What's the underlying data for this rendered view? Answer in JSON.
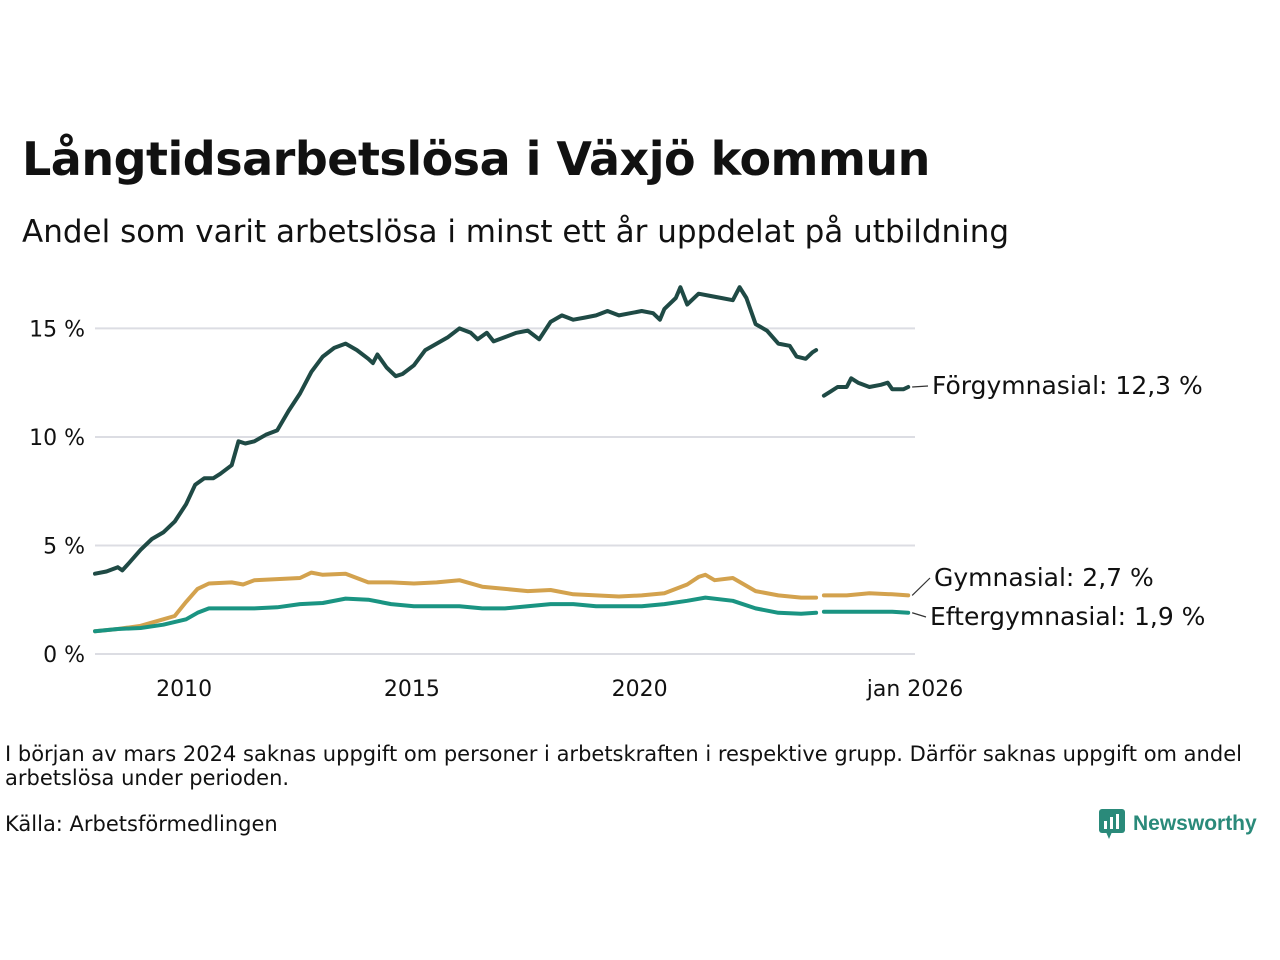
{
  "header": {
    "title": "Långtidsarbetslösa i Växjö kommun",
    "subtitle": "Andel som varit arbetslösa i minst ett år uppdelat på utbildning"
  },
  "footer": {
    "note": "I början av mars 2024 saknas uppgift om personer i arbetskraften i respektive grupp. Därför saknas uppgift om andel arbetslösa under perioden.",
    "source": "Källa: Arbetsförmedlingen",
    "brand": "Newsworthy",
    "brand_icon": "bar-chart-icon"
  },
  "colors": {
    "forgymnasial": "#1f4a45",
    "gymnasial": "#d3a24e",
    "eftergymnasial": "#1a9482",
    "grid": "#dcdde3",
    "text": "#111111",
    "brand": "#2a8a7a"
  },
  "chart_data": {
    "type": "line",
    "title": "Långtidsarbetslösa i Växjö kommun",
    "subtitle": "Andel som varit arbetslösa i minst ett år uppdelat på utbildning",
    "xlabel": "",
    "ylabel": "",
    "xlim": [
      2008.0,
      2026.0
    ],
    "ylim": [
      0,
      17
    ],
    "y_ticks": [
      {
        "value": 0,
        "label": "0 %"
      },
      {
        "value": 5,
        "label": "5 %"
      },
      {
        "value": 10,
        "label": "10 %"
      },
      {
        "value": 15,
        "label": "15 %"
      }
    ],
    "x_ticks": [
      {
        "value": 2010,
        "label": "2010"
      },
      {
        "value": 2015,
        "label": "2015"
      },
      {
        "value": 2020,
        "label": "2020"
      },
      {
        "value": 2026,
        "label": "jan 2026"
      }
    ],
    "grid": true,
    "gap": [
      2023.83,
      2024.0
    ],
    "series": [
      {
        "name": "Förgymnasial",
        "label": "Förgymnasial: 12,3 %",
        "color": "#1f4a45",
        "points": [
          [
            2008.0,
            3.7
          ],
          [
            2008.25,
            3.8
          ],
          [
            2008.5,
            4.0
          ],
          [
            2008.6,
            3.85
          ],
          [
            2008.75,
            4.2
          ],
          [
            2009.0,
            4.8
          ],
          [
            2009.25,
            5.3
          ],
          [
            2009.5,
            5.6
          ],
          [
            2009.75,
            6.1
          ],
          [
            2010.0,
            6.9
          ],
          [
            2010.2,
            7.8
          ],
          [
            2010.4,
            8.1
          ],
          [
            2010.6,
            8.1
          ],
          [
            2010.75,
            8.3
          ],
          [
            2011.0,
            8.7
          ],
          [
            2011.15,
            9.8
          ],
          [
            2011.3,
            9.7
          ],
          [
            2011.5,
            9.8
          ],
          [
            2011.75,
            10.1
          ],
          [
            2012.0,
            10.3
          ],
          [
            2012.25,
            11.2
          ],
          [
            2012.5,
            12.0
          ],
          [
            2012.75,
            13.0
          ],
          [
            2013.0,
            13.7
          ],
          [
            2013.25,
            14.1
          ],
          [
            2013.5,
            14.3
          ],
          [
            2013.75,
            14.0
          ],
          [
            2014.0,
            13.6
          ],
          [
            2014.1,
            13.4
          ],
          [
            2014.2,
            13.8
          ],
          [
            2014.4,
            13.2
          ],
          [
            2014.6,
            12.8
          ],
          [
            2014.75,
            12.9
          ],
          [
            2015.0,
            13.3
          ],
          [
            2015.25,
            14.0
          ],
          [
            2015.5,
            14.3
          ],
          [
            2015.75,
            14.6
          ],
          [
            2016.0,
            15.0
          ],
          [
            2016.25,
            14.8
          ],
          [
            2016.4,
            14.5
          ],
          [
            2016.6,
            14.8
          ],
          [
            2016.75,
            14.4
          ],
          [
            2017.0,
            14.6
          ],
          [
            2017.25,
            14.8
          ],
          [
            2017.5,
            14.9
          ],
          [
            2017.75,
            14.5
          ],
          [
            2018.0,
            15.3
          ],
          [
            2018.25,
            15.6
          ],
          [
            2018.5,
            15.4
          ],
          [
            2018.75,
            15.5
          ],
          [
            2019.0,
            15.6
          ],
          [
            2019.25,
            15.8
          ],
          [
            2019.5,
            15.6
          ],
          [
            2019.75,
            15.7
          ],
          [
            2020.0,
            15.8
          ],
          [
            2020.25,
            15.7
          ],
          [
            2020.4,
            15.4
          ],
          [
            2020.5,
            15.9
          ],
          [
            2020.75,
            16.4
          ],
          [
            2020.85,
            16.9
          ],
          [
            2021.0,
            16.1
          ],
          [
            2021.25,
            16.6
          ],
          [
            2021.5,
            16.5
          ],
          [
            2021.75,
            16.4
          ],
          [
            2022.0,
            16.3
          ],
          [
            2022.15,
            16.9
          ],
          [
            2022.3,
            16.4
          ],
          [
            2022.5,
            15.2
          ],
          [
            2022.75,
            14.9
          ],
          [
            2023.0,
            14.3
          ],
          [
            2023.25,
            14.2
          ],
          [
            2023.4,
            13.7
          ],
          [
            2023.6,
            13.6
          ],
          [
            2023.75,
            13.9
          ],
          [
            2023.83,
            14.0
          ],
          null,
          [
            2024.0,
            11.9
          ],
          [
            2024.15,
            12.1
          ],
          [
            2024.3,
            12.3
          ],
          [
            2024.5,
            12.3
          ],
          [
            2024.6,
            12.7
          ],
          [
            2024.75,
            12.5
          ],
          [
            2025.0,
            12.3
          ],
          [
            2025.25,
            12.4
          ],
          [
            2025.4,
            12.5
          ],
          [
            2025.5,
            12.2
          ],
          [
            2025.75,
            12.2
          ],
          [
            2025.85,
            12.3
          ]
        ]
      },
      {
        "name": "Gymnasial",
        "label": "Gymnasial:  2,7 %",
        "color": "#d3a24e",
        "points": [
          [
            2008.0,
            1.05
          ],
          [
            2008.5,
            1.15
          ],
          [
            2009.0,
            1.3
          ],
          [
            2009.5,
            1.6
          ],
          [
            2009.75,
            1.75
          ],
          [
            2010.0,
            2.4
          ],
          [
            2010.25,
            3.0
          ],
          [
            2010.5,
            3.25
          ],
          [
            2011.0,
            3.3
          ],
          [
            2011.25,
            3.2
          ],
          [
            2011.5,
            3.4
          ],
          [
            2012.0,
            3.45
          ],
          [
            2012.5,
            3.5
          ],
          [
            2012.75,
            3.75
          ],
          [
            2013.0,
            3.65
          ],
          [
            2013.5,
            3.7
          ],
          [
            2014.0,
            3.3
          ],
          [
            2014.5,
            3.3
          ],
          [
            2015.0,
            3.25
          ],
          [
            2015.5,
            3.3
          ],
          [
            2016.0,
            3.4
          ],
          [
            2016.5,
            3.1
          ],
          [
            2017.0,
            3.0
          ],
          [
            2017.5,
            2.9
          ],
          [
            2018.0,
            2.95
          ],
          [
            2018.5,
            2.75
          ],
          [
            2019.0,
            2.7
          ],
          [
            2019.5,
            2.65
          ],
          [
            2020.0,
            2.7
          ],
          [
            2020.5,
            2.8
          ],
          [
            2021.0,
            3.2
          ],
          [
            2021.25,
            3.55
          ],
          [
            2021.4,
            3.65
          ],
          [
            2021.6,
            3.4
          ],
          [
            2022.0,
            3.5
          ],
          [
            2022.5,
            2.9
          ],
          [
            2023.0,
            2.7
          ],
          [
            2023.5,
            2.6
          ],
          [
            2023.83,
            2.6
          ],
          null,
          [
            2024.0,
            2.7
          ],
          [
            2024.5,
            2.7
          ],
          [
            2025.0,
            2.8
          ],
          [
            2025.5,
            2.75
          ],
          [
            2025.85,
            2.7
          ]
        ]
      },
      {
        "name": "Eftergymnasial",
        "label": "Eftergymnasial:  1,9 %",
        "color": "#1a9482",
        "points": [
          [
            2008.0,
            1.05
          ],
          [
            2008.5,
            1.15
          ],
          [
            2009.0,
            1.2
          ],
          [
            2009.5,
            1.35
          ],
          [
            2010.0,
            1.6
          ],
          [
            2010.25,
            1.9
          ],
          [
            2010.5,
            2.1
          ],
          [
            2011.0,
            2.1
          ],
          [
            2011.5,
            2.1
          ],
          [
            2012.0,
            2.15
          ],
          [
            2012.5,
            2.3
          ],
          [
            2013.0,
            2.35
          ],
          [
            2013.5,
            2.55
          ],
          [
            2014.0,
            2.5
          ],
          [
            2014.5,
            2.3
          ],
          [
            2015.0,
            2.2
          ],
          [
            2015.5,
            2.2
          ],
          [
            2016.0,
            2.2
          ],
          [
            2016.5,
            2.1
          ],
          [
            2017.0,
            2.1
          ],
          [
            2017.5,
            2.2
          ],
          [
            2018.0,
            2.3
          ],
          [
            2018.5,
            2.3
          ],
          [
            2019.0,
            2.2
          ],
          [
            2019.5,
            2.2
          ],
          [
            2020.0,
            2.2
          ],
          [
            2020.5,
            2.3
          ],
          [
            2021.0,
            2.45
          ],
          [
            2021.4,
            2.6
          ],
          [
            2022.0,
            2.45
          ],
          [
            2022.5,
            2.1
          ],
          [
            2023.0,
            1.9
          ],
          [
            2023.5,
            1.85
          ],
          [
            2023.83,
            1.9
          ],
          null,
          [
            2024.0,
            1.95
          ],
          [
            2024.5,
            1.95
          ],
          [
            2025.0,
            1.95
          ],
          [
            2025.5,
            1.95
          ],
          [
            2025.85,
            1.9
          ]
        ]
      }
    ]
  }
}
